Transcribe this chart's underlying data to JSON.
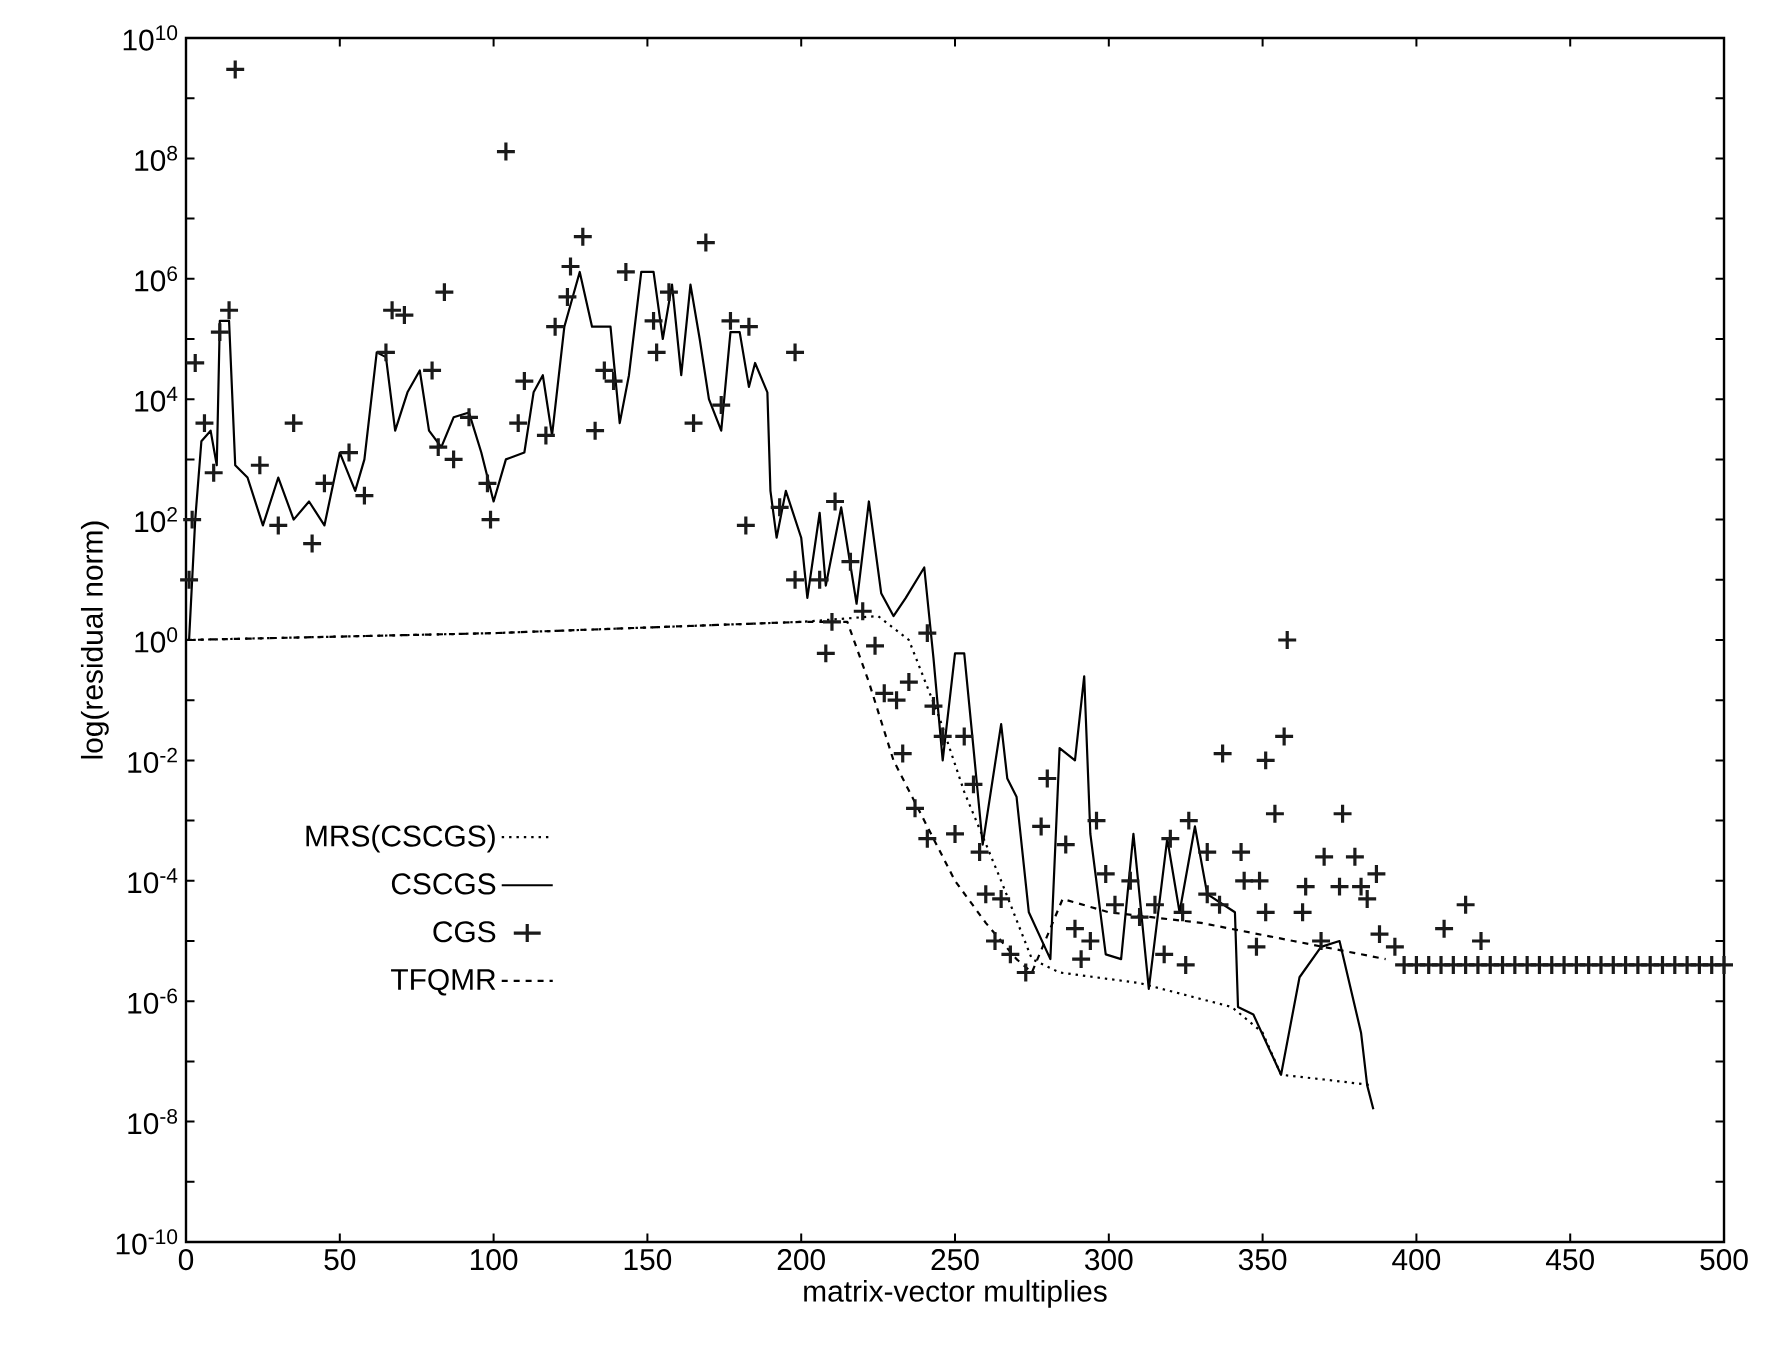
{
  "chart_data": {
    "type": "line",
    "xlabel": "matrix-vector multiplies",
    "ylabel": "log(residual norm)",
    "log": "y",
    "legend": "bottom left",
    "xlim": [
      0,
      500
    ],
    "ylim": [
      1e-10,
      10000000000.0
    ],
    "xticks": [
      0,
      50,
      100,
      150,
      200,
      250,
      300,
      350,
      400,
      450,
      500
    ],
    "yticks": [
      {
        "value": 1e-10,
        "label": "10$^{-10}$"
      },
      {
        "value": 1e-09,
        "label": null
      },
      {
        "value": 1e-08,
        "label": "10$^{-8}$"
      },
      {
        "value": 1e-07,
        "label": null
      },
      {
        "value": 1e-06,
        "label": "10$^{-6}$"
      },
      {
        "value": 1e-05,
        "label": null
      },
      {
        "value": 0.0001,
        "label": "10$^{-4}$"
      },
      {
        "value": 0.001,
        "label": null
      },
      {
        "value": 0.01,
        "label": "10$^{-2}$"
      },
      {
        "value": 0.1,
        "label": null
      },
      {
        "value": 1,
        "label": "10$^{0}$"
      },
      {
        "value": 10.0,
        "label": null
      },
      {
        "value": 100.0,
        "label": "10$^{2}$"
      },
      {
        "value": 1000.0,
        "label": null
      },
      {
        "value": 10000.0,
        "label": "10$^{4}$"
      },
      {
        "value": 100000.0,
        "label": null
      },
      {
        "value": 1000000.0,
        "label": "10$^{6}$"
      },
      {
        "value": 10000000.0,
        "label": null
      },
      {
        "value": 100000000.0,
        "label": "10$^{8}$"
      },
      {
        "value": 1000000000.0,
        "label": null
      },
      {
        "value": 10000000000.0,
        "label": "10$^{10}$"
      }
    ],
    "series": [
      {
        "name": "MRS(CSCGS)",
        "color": "#000000",
        "line_style": "dotted",
        "x": [
          0,
          100,
          200,
          225,
          235,
          245,
          253,
          265,
          275,
          284,
          310,
          340,
          350,
          356,
          370,
          386
        ],
        "values": [
          1,
          1.3,
          2,
          2.5,
          1,
          0.05,
          0.003,
          0.0001,
          5e-06,
          3e-06,
          2e-06,
          8e-07,
          3e-07,
          6e-08,
          5e-08,
          4e-08
        ]
      },
      {
        "name": "CSCGS",
        "color": "#000000",
        "line_style": "solid",
        "x": [
          1,
          3,
          5,
          8,
          10,
          11,
          14,
          16,
          20,
          25,
          30,
          35,
          40,
          45,
          50,
          55,
          58,
          62,
          65,
          68,
          72,
          76,
          79,
          83,
          87,
          92,
          96,
          100,
          104,
          110,
          113,
          116,
          119,
          123,
          128,
          132,
          138,
          141,
          144,
          148,
          152,
          155,
          158,
          161,
          164,
          167,
          170,
          174,
          177,
          180,
          183,
          185,
          189,
          190,
          192,
          195,
          200,
          202,
          206,
          208,
          213,
          218,
          222,
          226,
          230,
          234,
          240,
          243,
          246,
          250,
          253,
          256,
          259,
          265,
          267,
          270,
          274,
          281,
          284,
          289,
          292,
          294,
          299,
          304,
          308,
          313,
          319,
          323,
          328,
          332,
          341,
          342,
          347,
          356,
          362,
          369,
          375,
          382,
          384,
          386
        ],
        "values": [
          1,
          100.0,
          2000.0,
          3000.0,
          800.0,
          200000.0,
          200000.0,
          800.0,
          500.0,
          80.0,
          500.0,
          100.0,
          200.0,
          80.0,
          1300.0,
          300.0,
          1000.0,
          60000.0,
          50000.0,
          3000.0,
          13000.0,
          30000.0,
          3000.0,
          1600.0,
          5000.0,
          6000.0,
          1300.0,
          200.0,
          1000.0,
          1300.0,
          13000.0,
          25000.0,
          2500.0,
          160000.0,
          1300000.0,
          160000.0,
          160000.0,
          4000.0,
          25000.0,
          1300000.0,
          1300000.0,
          100000.0,
          800000.0,
          25000.0,
          800000.0,
          100000.0,
          10000.0,
          3000.0,
          130000.0,
          130000.0,
          16000.0,
          40000.0,
          13000.0,
          300.0,
          50.0,
          300.0,
          50.0,
          5,
          130.0,
          8,
          160.0,
          4,
          200.0,
          6,
          2.5,
          5,
          16,
          0.5,
          0.01,
          0.6,
          0.6,
          0.016,
          0.0004,
          0.04,
          0.005,
          0.0025,
          3e-05,
          5e-06,
          0.016,
          0.01,
          0.25,
          0.0006,
          6e-06,
          5e-06,
          0.0006,
          1.6e-06,
          0.0005,
          3e-05,
          0.0008,
          6e-05,
          3e-05,
          8e-07,
          6e-07,
          6e-08,
          2.5e-06,
          8e-06,
          1e-05,
          3e-07,
          4e-08,
          1.6e-08
        ]
      },
      {
        "name": "CGS",
        "type": "scatter",
        "color": "#1a1a1a",
        "marker": "cross",
        "x": [
          1,
          2,
          3,
          6,
          9,
          11,
          14,
          16,
          24,
          30,
          35,
          41,
          45,
          53,
          58,
          65,
          67,
          71,
          80,
          82,
          84,
          87,
          92,
          98,
          99,
          104,
          108,
          110,
          117,
          120,
          124,
          125,
          129,
          133,
          136,
          139,
          143,
          152,
          153,
          157,
          165,
          169,
          174,
          177,
          182,
          183,
          193,
          198,
          198,
          206,
          208,
          210,
          211,
          216,
          220,
          224,
          227,
          231,
          233,
          235,
          237,
          241,
          241,
          243,
          246,
          250,
          253,
          256,
          258,
          260,
          263,
          265,
          268,
          273,
          278,
          280,
          286,
          289,
          291,
          294,
          296,
          299,
          302,
          307,
          310,
          315,
          318,
          320,
          324,
          325,
          326,
          332,
          332,
          336,
          337,
          343,
          344,
          348,
          349,
          351,
          351,
          354,
          357,
          358,
          363,
          364,
          369,
          370,
          375,
          376,
          380,
          382,
          384,
          387,
          388,
          393,
          396,
          400,
          404,
          408,
          409,
          412,
          416,
          416,
          420,
          421,
          424,
          428,
          432,
          436,
          440,
          444,
          448,
          452,
          456,
          460,
          464,
          468,
          472,
          476,
          480,
          484,
          488,
          492,
          496,
          500
        ],
        "values": [
          10,
          100.0,
          40000.0,
          4000.0,
          600.0,
          130000.0,
          300000.0,
          3000000000.0,
          800.0,
          80.0,
          4000.0,
          40.0,
          400.0,
          1300.0,
          250.0,
          60000.0,
          300000.0,
          250000.0,
          30000.0,
          1600.0,
          600000.0,
          1000.0,
          5000.0,
          400.0,
          100.0,
          130000000.0,
          4000.0,
          20000.0,
          2500.0,
          160000.0,
          500000.0,
          1600000.0,
          5000000.0,
          3000.0,
          30000.0,
          20000.0,
          1300000.0,
          200000.0,
          60000.0,
          600000.0,
          4000.0,
          4000000.0,
          8000.0,
          200000.0,
          80.0,
          160000.0,
          160.0,
          60000.0,
          10,
          10,
          0.6,
          2,
          200.0,
          20,
          3,
          0.8,
          0.13,
          0.1,
          0.013,
          0.2,
          0.0016,
          1.3,
          0.0005,
          0.08,
          0.025,
          0.0006,
          0.025,
          0.004,
          0.0003,
          6e-05,
          1e-05,
          5e-05,
          6e-06,
          3e-06,
          0.0008,
          0.005,
          0.0004,
          1.6e-05,
          5e-06,
          1e-05,
          0.001,
          0.00013,
          4e-05,
          0.0001,
          2.5e-05,
          4e-05,
          6e-06,
          0.0005,
          3e-05,
          4e-06,
          0.001,
          0.0003,
          6e-05,
          4e-05,
          0.013,
          0.0003,
          0.0001,
          8e-06,
          0.0001,
          0.01,
          3e-05,
          0.0013,
          0.025,
          1,
          3e-05,
          8e-05,
          1e-05,
          0.00025,
          8e-05,
          0.0013,
          0.00025,
          8e-05,
          5e-05,
          0.00013,
          1.3e-05,
          8e-06,
          4e-06,
          4e-06,
          4e-06,
          4e-06,
          1.6e-05,
          4e-06,
          4e-05,
          4e-06,
          4e-06,
          1e-05,
          4e-06,
          4e-06,
          4e-06,
          4e-06,
          4e-06,
          4e-06,
          4e-06,
          4e-06,
          4e-06,
          4e-06,
          4e-06,
          4e-06,
          4e-06,
          4e-06,
          4e-06,
          4e-06,
          4e-06,
          4e-06,
          4e-06,
          4e-06
        ]
      },
      {
        "name": "TFQMR",
        "color": "#000000",
        "line_style": "dashed",
        "x": [
          0,
          100,
          200,
          215,
          222,
          230,
          240,
          250,
          260,
          270,
          275,
          285,
          300,
          330,
          360,
          390
        ],
        "values": [
          1,
          1.3,
          2,
          2,
          0.2,
          0.01,
          0.001,
          0.0001,
          2e-05,
          5e-06,
          3e-06,
          5e-05,
          3e-05,
          2e-05,
          1e-05,
          5e-06
        ]
      }
    ]
  }
}
